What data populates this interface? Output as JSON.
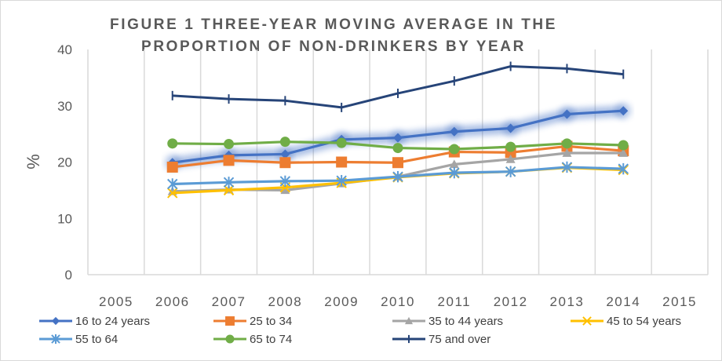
{
  "chart_data": {
    "type": "line",
    "title": "FIGURE 1 THREE-YEAR MOVING AVERAGE IN THE PROPORTION OF NON-DRINKERS BY YEAR",
    "title_lines": [
      "FIGURE 1 THREE-YEAR MOVING AVERAGE IN THE",
      "PROPORTION OF NON-DRINKERS BY YEAR"
    ],
    "xlabel": "",
    "ylabel": "%",
    "categories": [
      "2005",
      "2006",
      "2007",
      "2008",
      "2009",
      "2010",
      "2011",
      "2012",
      "2013",
      "2014",
      "2015"
    ],
    "ylim": [
      0,
      40
    ],
    "yticks": [
      0,
      10,
      20,
      30,
      40
    ],
    "grid": "vertical",
    "legend_position": "bottom",
    "series": [
      {
        "name": "16 to 24 years",
        "color": "#4472c4",
        "marker": "diamond",
        "glow": true,
        "values": [
          null,
          19.9,
          21.2,
          21.4,
          24.0,
          24.3,
          25.4,
          26.0,
          28.5,
          29.1,
          null
        ]
      },
      {
        "name": "25 to 34",
        "color": "#ed7d31",
        "marker": "square",
        "values": [
          null,
          19.1,
          20.3,
          19.9,
          20.0,
          19.9,
          21.8,
          21.7,
          22.8,
          22.0,
          null
        ]
      },
      {
        "name": "35 to 44 years",
        "color": "#a5a5a5",
        "marker": "triangle",
        "values": [
          null,
          14.8,
          15.1,
          15.0,
          16.2,
          17.4,
          19.6,
          20.5,
          21.6,
          21.6,
          null
        ]
      },
      {
        "name": "45 to 54 years",
        "color": "#ffc000",
        "marker": "x",
        "values": [
          null,
          14.5,
          15.0,
          15.5,
          16.3,
          17.3,
          18.0,
          18.3,
          19.0,
          18.6,
          null
        ]
      },
      {
        "name": "55 to 64",
        "color": "#5b9bd5",
        "marker": "asterisk",
        "values": [
          null,
          16.1,
          16.4,
          16.6,
          16.7,
          17.4,
          18.1,
          18.3,
          19.1,
          18.8,
          null
        ]
      },
      {
        "name": "65 to 74",
        "color": "#70ad47",
        "marker": "circle",
        "values": [
          null,
          23.3,
          23.2,
          23.6,
          23.4,
          22.5,
          22.3,
          22.7,
          23.3,
          23.0,
          null
        ]
      },
      {
        "name": "75 and over",
        "color": "#264478",
        "marker": "plus",
        "values": [
          null,
          31.8,
          31.2,
          30.9,
          29.7,
          32.2,
          34.4,
          37.0,
          36.6,
          35.6,
          null
        ]
      }
    ]
  }
}
